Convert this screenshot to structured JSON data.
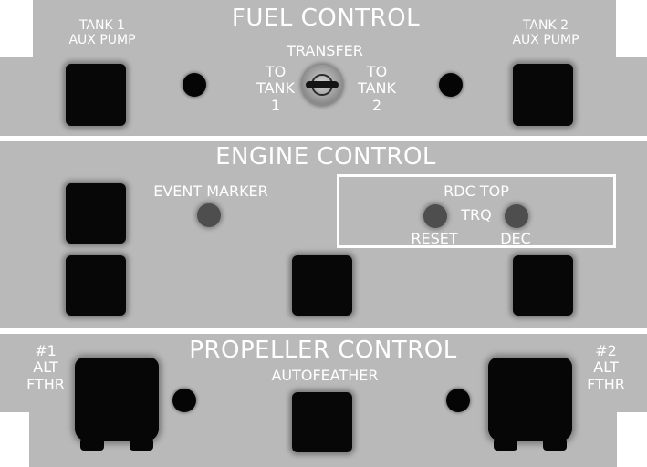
{
  "fuel_control": {
    "title": "FUEL CONTROL",
    "tank1_aux_pump": {
      "line1": "TANK 1",
      "line2": "AUX PUMP"
    },
    "tank2_aux_pump": {
      "line1": "TANK 2",
      "line2": "AUX PUMP"
    },
    "transfer": {
      "label": "TRANSFER",
      "left": {
        "line1": "TO",
        "line2": "TANK",
        "line3": "1"
      },
      "right": {
        "line1": "TO",
        "line2": "TANK",
        "line3": "2"
      }
    }
  },
  "engine_control": {
    "title": "ENGINE CONTROL",
    "event_marker": "EVENT MARKER",
    "rdc_top": "RDC TOP",
    "trq": "TRQ",
    "reset": "RESET",
    "dec": "DEC"
  },
  "propeller_control": {
    "title": "PROPELLER CONTROL",
    "autofeather": "AUTOFEATHER",
    "alt_fthr_1": {
      "line1": "#1",
      "line2": "ALT",
      "line3": "FTHR"
    },
    "alt_fthr_2": {
      "line1": "#2",
      "line2": "ALT",
      "line3": "FTHR"
    }
  },
  "colors": {
    "panel": "#b9b9b9",
    "text": "#ffffff",
    "switch": "#070707",
    "indicator": "#4e4e4e"
  }
}
